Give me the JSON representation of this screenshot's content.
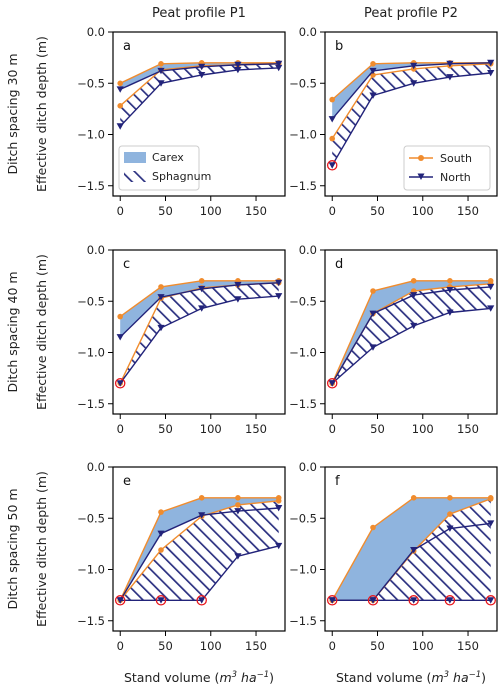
{
  "figure": {
    "col_headers": [
      "Peat profile P1",
      "Peat profile P2"
    ],
    "row_labels": [
      "Ditch spacing 30 m",
      "Ditch spacing 40 m",
      "Ditch spacing 50 m"
    ],
    "ylabel": "Effective ditch depth (m)",
    "xlabel_main": "Stand volume (",
    "xlabel_unit": "m",
    "xlabel_exp1": "3",
    "xlabel_unit2": " ha",
    "xlabel_exp2": "−1",
    "xlabel_close": ")",
    "legend_area": [
      {
        "label": "Carex",
        "style": "solid",
        "color": "#8fb4de"
      },
      {
        "label": "Sphagnum",
        "style": "hatch",
        "color": "#2a2f80"
      }
    ],
    "legend_lines": [
      {
        "label": "South",
        "marker": "circle",
        "color": "#f08c2e"
      },
      {
        "label": "North",
        "marker": "triangle-down",
        "color": "#22237a"
      }
    ],
    "colors": {
      "south": "#f08c2e",
      "north": "#22237a",
      "carex": "#8fb4de",
      "highlight": "#e8171c"
    }
  },
  "chart_data": [
    {
      "type": "line",
      "panel": "a",
      "xlim": [
        -8,
        182
      ],
      "ylim": [
        -1.6,
        0.0
      ],
      "xticks": [
        "0",
        "50",
        "100",
        "150"
      ],
      "yticks": [
        "0.0",
        "−0.5",
        "−1.0",
        "−1.5"
      ],
      "x": [
        0,
        45,
        90,
        130,
        175
      ],
      "series": [
        {
          "name": "South",
          "carex": [
            -0.5,
            -0.31,
            -0.3,
            -0.3,
            -0.3
          ],
          "sphagnum": [
            -0.72,
            -0.37,
            -0.33,
            -0.32,
            -0.31
          ]
        },
        {
          "name": "North",
          "carex": [
            -0.56,
            -0.38,
            -0.34,
            -0.32,
            -0.31
          ],
          "sphagnum": [
            -0.92,
            -0.5,
            -0.42,
            -0.37,
            -0.35
          ]
        }
      ],
      "highlight_x": []
    },
    {
      "type": "line",
      "panel": "b",
      "xlim": [
        -8,
        182
      ],
      "ylim": [
        -1.6,
        0.0
      ],
      "xticks": [
        "0",
        "50",
        "100",
        "150"
      ],
      "yticks": [
        "0.0",
        "−0.5",
        "−1.0",
        "−1.5"
      ],
      "x": [
        0,
        45,
        90,
        130,
        175
      ],
      "series": [
        {
          "name": "South",
          "carex": [
            -0.66,
            -0.31,
            -0.3,
            -0.3,
            -0.3
          ],
          "sphagnum": [
            -1.04,
            -0.42,
            -0.36,
            -0.33,
            -0.31
          ]
        },
        {
          "name": "North",
          "carex": [
            -0.85,
            -0.38,
            -0.33,
            -0.31,
            -0.3
          ],
          "sphagnum": [
            -1.3,
            -0.62,
            -0.5,
            -0.44,
            -0.4
          ]
        }
      ],
      "highlight_x": [
        0
      ]
    },
    {
      "type": "line",
      "panel": "c",
      "xlim": [
        -8,
        182
      ],
      "ylim": [
        -1.6,
        0.0
      ],
      "xticks": [
        "0",
        "50",
        "100",
        "150"
      ],
      "yticks": [
        "0.0",
        "−0.5",
        "−1.0",
        "−1.5"
      ],
      "x": [
        0,
        45,
        90,
        130,
        175
      ],
      "series": [
        {
          "name": "South",
          "carex": [
            -0.65,
            -0.36,
            -0.3,
            -0.3,
            -0.3
          ],
          "sphagnum": [
            -1.3,
            -0.47,
            -0.37,
            -0.34,
            -0.32
          ]
        },
        {
          "name": "North",
          "carex": [
            -0.85,
            -0.46,
            -0.38,
            -0.34,
            -0.32
          ],
          "sphagnum": [
            -1.3,
            -0.76,
            -0.57,
            -0.48,
            -0.45
          ]
        }
      ],
      "highlight_x": [
        0
      ]
    },
    {
      "type": "line",
      "panel": "d",
      "xlim": [
        -8,
        182
      ],
      "ylim": [
        -1.6,
        0.0
      ],
      "xticks": [
        "0",
        "50",
        "100",
        "150"
      ],
      "yticks": [
        "0.0",
        "−0.5",
        "−1.0",
        "−1.5"
      ],
      "x": [
        0,
        45,
        90,
        130,
        175
      ],
      "series": [
        {
          "name": "South",
          "carex": [
            -1.3,
            -0.4,
            -0.3,
            -0.3,
            -0.3
          ],
          "sphagnum": [
            -1.3,
            -0.62,
            -0.4,
            -0.36,
            -0.33
          ]
        },
        {
          "name": "North",
          "carex": [
            -1.3,
            -0.62,
            -0.44,
            -0.39,
            -0.36
          ],
          "sphagnum": [
            -1.3,
            -0.95,
            -0.74,
            -0.61,
            -0.57
          ]
        }
      ],
      "highlight_x": [
        0
      ]
    },
    {
      "type": "line",
      "panel": "e",
      "xlim": [
        -8,
        182
      ],
      "ylim": [
        -1.6,
        0.0
      ],
      "xticks": [
        "0",
        "50",
        "100",
        "150"
      ],
      "yticks": [
        "0.0",
        "−0.5",
        "−1.0",
        "−1.5"
      ],
      "x": [
        0,
        45,
        90,
        130,
        175
      ],
      "series": [
        {
          "name": "South",
          "carex": [
            -1.3,
            -0.44,
            -0.3,
            -0.3,
            -0.3
          ],
          "sphagnum": [
            -1.3,
            -0.81,
            -0.48,
            -0.37,
            -0.33
          ]
        },
        {
          "name": "North",
          "carex": [
            -1.3,
            -0.65,
            -0.47,
            -0.43,
            -0.4
          ],
          "sphagnum": [
            -1.3,
            -1.3,
            -1.3,
            -0.87,
            -0.77
          ]
        }
      ],
      "highlight_x": [
        0,
        45,
        90
      ]
    },
    {
      "type": "line",
      "panel": "f",
      "xlim": [
        -8,
        182
      ],
      "ylim": [
        -1.6,
        0.0
      ],
      "xticks": [
        "0",
        "50",
        "100",
        "150"
      ],
      "yticks": [
        "0.0",
        "−0.5",
        "−1.0",
        "−1.5"
      ],
      "x": [
        0,
        45,
        90,
        130,
        175
      ],
      "series": [
        {
          "name": "South",
          "carex": [
            -1.3,
            -0.59,
            -0.3,
            -0.3,
            -0.3
          ],
          "sphagnum": [
            -1.3,
            -1.3,
            -0.82,
            -0.46,
            -0.31
          ]
        },
        {
          "name": "North",
          "carex": [
            -1.3,
            -1.3,
            -0.81,
            -0.6,
            -0.55
          ],
          "sphagnum": [
            -1.3,
            -1.3,
            -1.3,
            -1.3,
            -1.3
          ]
        }
      ],
      "highlight_x": [
        0,
        45,
        90,
        130,
        175
      ]
    }
  ]
}
